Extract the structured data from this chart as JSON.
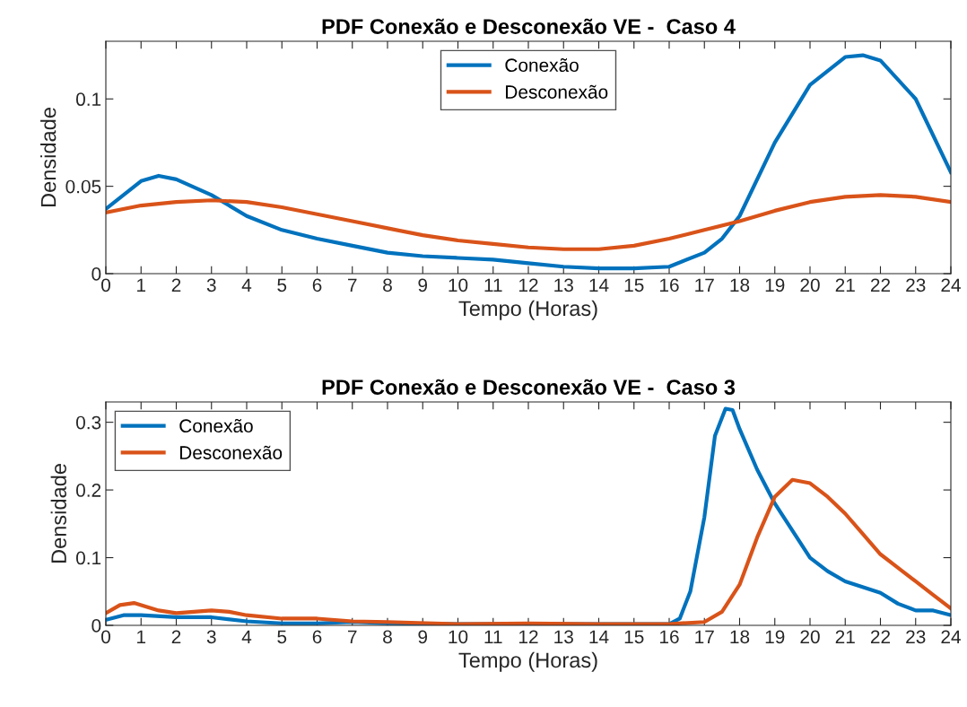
{
  "chart_data": [
    {
      "type": "line",
      "title": "PDF Conexão e Desconexão VE -  Caso 4",
      "xlabel": "Tempo (Horas)",
      "ylabel": "Densidade",
      "xlim": [
        0,
        24
      ],
      "xticks": [
        0,
        1,
        2,
        3,
        4,
        5,
        6,
        7,
        8,
        9,
        10,
        11,
        12,
        13,
        14,
        15,
        16,
        17,
        18,
        19,
        20,
        21,
        22,
        23,
        24
      ],
      "ylim": [
        0,
        0.133
      ],
      "yticks": [
        0,
        0.05,
        0.1
      ],
      "grid": false,
      "legend": "top",
      "marker": "none",
      "line_style": "solid",
      "series": [
        {
          "name": "Conexão",
          "color": "#0072bd",
          "x": [
            0,
            1,
            1.5,
            2,
            3,
            4,
            5,
            6,
            7,
            8,
            9,
            10,
            11,
            12,
            13,
            14,
            15,
            16,
            17,
            17.5,
            18,
            19,
            20,
            21,
            21.5,
            22,
            23,
            24
          ],
          "values": [
            0.037,
            0.053,
            0.056,
            0.054,
            0.045,
            0.033,
            0.025,
            0.02,
            0.016,
            0.012,
            0.01,
            0.009,
            0.008,
            0.006,
            0.004,
            0.003,
            0.003,
            0.004,
            0.012,
            0.02,
            0.033,
            0.075,
            0.108,
            0.124,
            0.125,
            0.122,
            0.1,
            0.058
          ]
        },
        {
          "name": "Desconexão",
          "color": "#d95319",
          "x": [
            0,
            1,
            2,
            3,
            4,
            5,
            6,
            7,
            8,
            9,
            10,
            11,
            12,
            13,
            14,
            15,
            16,
            17,
            18,
            19,
            20,
            21,
            22,
            23,
            24
          ],
          "values": [
            0.035,
            0.039,
            0.041,
            0.042,
            0.041,
            0.038,
            0.034,
            0.03,
            0.026,
            0.022,
            0.019,
            0.017,
            0.015,
            0.014,
            0.014,
            0.016,
            0.02,
            0.025,
            0.03,
            0.036,
            0.041,
            0.044,
            0.045,
            0.044,
            0.041
          ]
        }
      ]
    },
    {
      "type": "line",
      "title": "PDF Conexão e Desconexão VE -  Caso 3",
      "xlabel": "Tempo (Horas)",
      "ylabel": "Densidade",
      "xlim": [
        0,
        24
      ],
      "xticks": [
        0,
        1,
        2,
        3,
        4,
        5,
        6,
        7,
        8,
        9,
        10,
        11,
        12,
        13,
        14,
        15,
        16,
        17,
        18,
        19,
        20,
        21,
        22,
        23,
        24
      ],
      "ylim": [
        0,
        0.33
      ],
      "yticks": [
        0,
        0.1,
        0.2,
        0.3
      ],
      "grid": false,
      "legend": "top left",
      "marker": "none",
      "line_style": "solid",
      "series": [
        {
          "name": "Conexão",
          "color": "#0072bd",
          "x": [
            0,
            0.5,
            1,
            2,
            3,
            4,
            5,
            6,
            7,
            8,
            10,
            14,
            16,
            16.3,
            16.6,
            17,
            17.3,
            17.6,
            17.8,
            18,
            18.5,
            19,
            19.5,
            20,
            20.5,
            21,
            22,
            22.5,
            23,
            23.5,
            24
          ],
          "values": [
            0.008,
            0.015,
            0.015,
            0.012,
            0.012,
            0.006,
            0.003,
            0.003,
            0.005,
            0.003,
            0.002,
            0.002,
            0.002,
            0.01,
            0.05,
            0.16,
            0.28,
            0.32,
            0.318,
            0.29,
            0.23,
            0.18,
            0.14,
            0.1,
            0.08,
            0.065,
            0.048,
            0.032,
            0.022,
            0.022,
            0.015
          ]
        },
        {
          "name": "Desconexão",
          "color": "#d95319",
          "x": [
            0,
            0.4,
            0.8,
            1.5,
            2,
            3,
            3.5,
            4,
            5,
            6,
            7,
            8,
            10,
            12,
            14,
            16,
            17,
            17.5,
            18,
            18.5,
            19,
            19.5,
            20,
            20.5,
            21,
            21.5,
            22,
            22.5,
            23,
            23.5,
            24
          ],
          "values": [
            0.018,
            0.03,
            0.033,
            0.022,
            0.018,
            0.022,
            0.02,
            0.015,
            0.01,
            0.01,
            0.006,
            0.005,
            0.002,
            0.003,
            0.002,
            0.002,
            0.005,
            0.02,
            0.06,
            0.13,
            0.19,
            0.215,
            0.21,
            0.19,
            0.165,
            0.135,
            0.105,
            0.085,
            0.065,
            0.045,
            0.025
          ]
        }
      ]
    }
  ]
}
